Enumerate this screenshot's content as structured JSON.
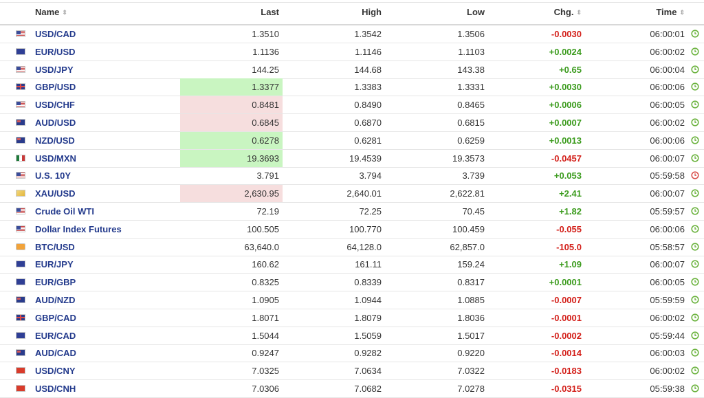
{
  "columns": {
    "name": "Name",
    "last": "Last",
    "high": "High",
    "low": "Low",
    "chg": "Chg.",
    "time": "Time"
  },
  "rows": [
    {
      "flag": "us-flag",
      "name": "USD/CAD",
      "last": "1.3510",
      "high": "1.3542",
      "low": "1.3506",
      "chg": "-0.0030",
      "dir": "neg",
      "time": "06:00:01",
      "highlight": "",
      "clock": "green"
    },
    {
      "flag": "eu-flag",
      "name": "EUR/USD",
      "last": "1.1136",
      "high": "1.1146",
      "low": "1.1103",
      "chg": "+0.0024",
      "dir": "pos",
      "time": "06:00:02",
      "highlight": "",
      "clock": "green"
    },
    {
      "flag": "us-flag",
      "name": "USD/JPY",
      "last": "144.25",
      "high": "144.68",
      "low": "143.38",
      "chg": "+0.65",
      "dir": "pos",
      "time": "06:00:04",
      "highlight": "",
      "clock": "green"
    },
    {
      "flag": "uk-flag",
      "name": "GBP/USD",
      "last": "1.3377",
      "high": "1.3383",
      "low": "1.3331",
      "chg": "+0.0030",
      "dir": "pos",
      "time": "06:00:06",
      "highlight": "up",
      "clock": "green"
    },
    {
      "flag": "us-flag",
      "name": "USD/CHF",
      "last": "0.8481",
      "high": "0.8490",
      "low": "0.8465",
      "chg": "+0.0006",
      "dir": "pos",
      "time": "06:00:05",
      "highlight": "down",
      "clock": "green"
    },
    {
      "flag": "au-flag",
      "name": "AUD/USD",
      "last": "0.6845",
      "high": "0.6870",
      "low": "0.6815",
      "chg": "+0.0007",
      "dir": "pos",
      "time": "06:00:02",
      "highlight": "down",
      "clock": "green"
    },
    {
      "flag": "au-flag",
      "name": "NZD/USD",
      "last": "0.6278",
      "high": "0.6281",
      "low": "0.6259",
      "chg": "+0.0013",
      "dir": "pos",
      "time": "06:00:06",
      "highlight": "up",
      "clock": "green"
    },
    {
      "flag": "mx-flag",
      "name": "USD/MXN",
      "last": "19.3693",
      "high": "19.4539",
      "low": "19.3573",
      "chg": "-0.0457",
      "dir": "neg",
      "time": "06:00:07",
      "highlight": "up",
      "clock": "green"
    },
    {
      "flag": "us-flag",
      "name": "U.S. 10Y",
      "last": "3.791",
      "high": "3.794",
      "low": "3.739",
      "chg": "+0.053",
      "dir": "pos",
      "time": "05:59:58",
      "highlight": "",
      "clock": "red"
    },
    {
      "flag": "gold-icon",
      "name": "XAU/USD",
      "last": "2,630.95",
      "high": "2,640.01",
      "low": "2,622.81",
      "chg": "+2.41",
      "dir": "pos",
      "time": "06:00:07",
      "highlight": "down",
      "clock": "green"
    },
    {
      "flag": "us-flag",
      "name": "Crude Oil WTI",
      "last": "72.19",
      "high": "72.25",
      "low": "70.45",
      "chg": "+1.82",
      "dir": "pos",
      "time": "05:59:57",
      "highlight": "",
      "clock": "green"
    },
    {
      "flag": "us-flag",
      "name": "Dollar Index Futures",
      "last": "100.505",
      "high": "100.770",
      "low": "100.459",
      "chg": "-0.055",
      "dir": "neg",
      "time": "06:00:06",
      "highlight": "",
      "clock": "green"
    },
    {
      "flag": "btc-icon",
      "name": "BTC/USD",
      "last": "63,640.0",
      "high": "64,128.0",
      "low": "62,857.0",
      "chg": "-105.0",
      "dir": "neg",
      "time": "05:58:57",
      "highlight": "",
      "clock": "green"
    },
    {
      "flag": "eu-flag",
      "name": "EUR/JPY",
      "last": "160.62",
      "high": "161.11",
      "low": "159.24",
      "chg": "+1.09",
      "dir": "pos",
      "time": "06:00:07",
      "highlight": "",
      "clock": "green"
    },
    {
      "flag": "eu-flag",
      "name": "EUR/GBP",
      "last": "0.8325",
      "high": "0.8339",
      "low": "0.8317",
      "chg": "+0.0001",
      "dir": "pos",
      "time": "06:00:05",
      "highlight": "",
      "clock": "green"
    },
    {
      "flag": "au-flag",
      "name": "AUD/NZD",
      "last": "1.0905",
      "high": "1.0944",
      "low": "1.0885",
      "chg": "-0.0007",
      "dir": "neg",
      "time": "05:59:59",
      "highlight": "",
      "clock": "green"
    },
    {
      "flag": "uk-flag",
      "name": "GBP/CAD",
      "last": "1.8071",
      "high": "1.8079",
      "low": "1.8036",
      "chg": "-0.0001",
      "dir": "neg",
      "time": "06:00:02",
      "highlight": "",
      "clock": "green"
    },
    {
      "flag": "eu-flag",
      "name": "EUR/CAD",
      "last": "1.5044",
      "high": "1.5059",
      "low": "1.5017",
      "chg": "-0.0002",
      "dir": "neg",
      "time": "05:59:44",
      "highlight": "",
      "clock": "green"
    },
    {
      "flag": "au-flag",
      "name": "AUD/CAD",
      "last": "0.9247",
      "high": "0.9282",
      "low": "0.9220",
      "chg": "-0.0014",
      "dir": "neg",
      "time": "06:00:03",
      "highlight": "",
      "clock": "green"
    },
    {
      "flag": "cn-flag",
      "name": "USD/CNY",
      "last": "7.0325",
      "high": "7.0634",
      "low": "7.0322",
      "chg": "-0.0183",
      "dir": "neg",
      "time": "06:00:02",
      "highlight": "",
      "clock": "green"
    },
    {
      "flag": "cn-flag",
      "name": "USD/CNH",
      "last": "7.0306",
      "high": "7.0682",
      "low": "7.0278",
      "chg": "-0.0315",
      "dir": "neg",
      "time": "05:59:38",
      "highlight": "",
      "clock": "green"
    }
  ],
  "colors": {
    "up_highlight": "#c9f5c1",
    "down_highlight": "#f6dede",
    "positive": "#3b9b1d",
    "negative": "#d3201a",
    "name_link": "#233a8c",
    "clock_green": "#6cb33f",
    "clock_red": "#d9534f"
  }
}
